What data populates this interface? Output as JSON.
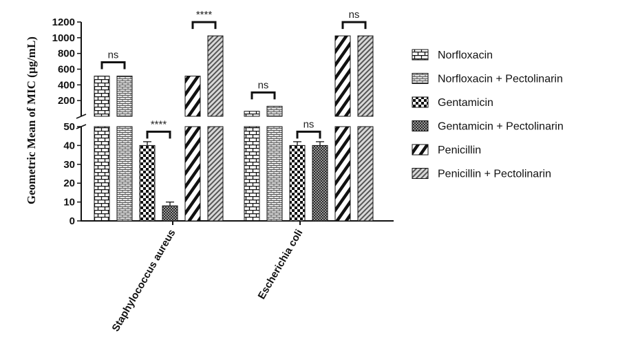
{
  "chart_data": {
    "type": "bar",
    "ylabel": "Geometric Mean of MIC (µg/mL)",
    "categories": [
      "Staphylococcus aureus",
      "Escherichia coli"
    ],
    "y_axis_break": {
      "lower_range": [
        0,
        50
      ],
      "upper_range": [
        0,
        1200
      ]
    },
    "lower_ticks": [
      "0",
      "10",
      "20",
      "30",
      "40",
      "50"
    ],
    "upper_ticks": [
      "200",
      "400",
      "600",
      "800",
      "1000",
      "1200"
    ],
    "legend_position": "right",
    "series": [
      {
        "name": "Norfloxacin",
        "pattern": "brick",
        "values": [
          512,
          64
        ]
      },
      {
        "name": "Norfloxacin + Pectolinarin",
        "pattern": "hbrick",
        "values": [
          512,
          128
        ]
      },
      {
        "name": "Gentamicin",
        "pattern": "checker",
        "values": [
          40,
          40
        ]
      },
      {
        "name": "Gentamicin + Pectolinarin",
        "pattern": "fine-checker",
        "values": [
          8,
          40
        ]
      },
      {
        "name": "Penicillin",
        "pattern": "wide-diagonal",
        "values": [
          512,
          1024
        ]
      },
      {
        "name": "Penicillin + Pectolinarin",
        "pattern": "narrow-diagonal",
        "values": [
          1024,
          1024
        ]
      }
    ],
    "error_bars": [
      {
        "category": "Staphylococcus aureus",
        "series": "Gentamicin",
        "err": 2
      },
      {
        "category": "Staphylococcus aureus",
        "series": "Gentamicin + Pectolinarin",
        "err": 2
      },
      {
        "category": "Escherichia coli",
        "series": "Gentamicin",
        "err": 2
      },
      {
        "category": "Escherichia coli",
        "series": "Gentamicin + Pectolinarin",
        "err": 2
      }
    ],
    "annotations": [
      {
        "category": "Staphylococcus aureus",
        "pair": [
          "Norfloxacin",
          "Norfloxacin + Pectolinarin"
        ],
        "label": "ns"
      },
      {
        "category": "Staphylococcus aureus",
        "pair": [
          "Gentamicin",
          "Gentamicin + Pectolinarin"
        ],
        "label": "****"
      },
      {
        "category": "Staphylococcus aureus",
        "pair": [
          "Penicillin",
          "Penicillin + Pectolinarin"
        ],
        "label": "****"
      },
      {
        "category": "Escherichia coli",
        "pair": [
          "Norfloxacin",
          "Norfloxacin + Pectolinarin"
        ],
        "label": "ns"
      },
      {
        "category": "Escherichia coli",
        "pair": [
          "Gentamicin",
          "Gentamicin + Pectolinarin"
        ],
        "label": "ns"
      },
      {
        "category": "Escherichia coli",
        "pair": [
          "Penicillin",
          "Penicillin + Pectolinarin"
        ],
        "label": "ns"
      }
    ]
  }
}
